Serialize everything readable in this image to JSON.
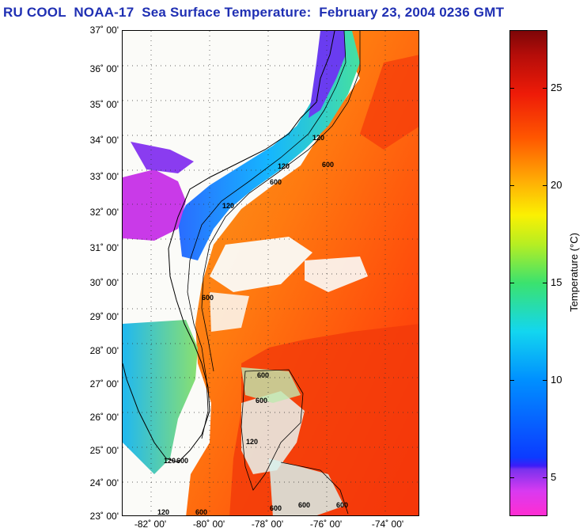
{
  "title": "RU COOL  NOAA-17  Sea Surface Temperature:  February 23, 2004 0236 GMT",
  "map": {
    "lat_labels": [
      "37˚ 00'",
      "36˚ 00'",
      "35˚ 00'",
      "34˚ 00'",
      "33˚ 00'",
      "32˚ 00'",
      "31˚ 00'",
      "30˚ 00'",
      "29˚ 00'",
      "28˚ 00'",
      "27˚ 00'",
      "26˚ 00'",
      "25˚ 00'",
      "24˚ 00'",
      "23˚ 00'"
    ],
    "lon_labels": [
      "-82˚ 00'",
      "-80˚ 00'",
      "-78˚ 00'",
      "-76˚ 00'",
      "-74˚ 00'"
    ],
    "contour_labels": [
      "120",
      "600",
      "120",
      "600",
      "120",
      "600",
      "600",
      "600",
      "120",
      "120",
      "600",
      "120",
      "600",
      "600",
      "600",
      "600"
    ]
  },
  "colorbar": {
    "title": "Temperature (°C)",
    "tick_labels": [
      "25",
      "20",
      "15",
      "10",
      "5"
    ],
    "range": [
      3,
      28.5
    ],
    "colors": [
      "#ff2dd2",
      "#7a32ee",
      "#0c3bff",
      "#0090ff",
      "#13d6ef",
      "#3be26e",
      "#fbf002",
      "#ffad05",
      "#ff5600",
      "#ee1b08",
      "#7d0608"
    ]
  }
}
